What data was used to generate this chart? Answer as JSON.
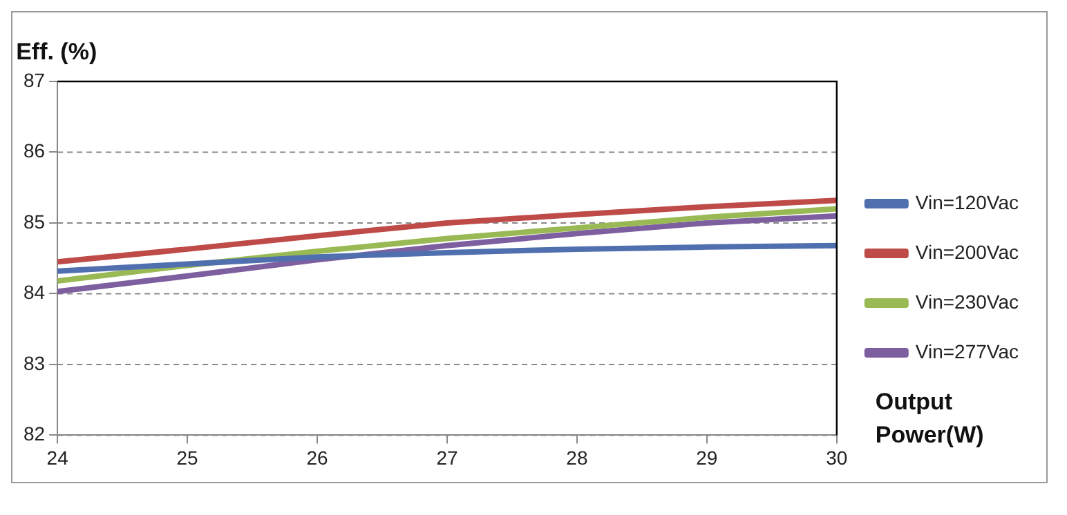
{
  "chart_data": {
    "type": "line",
    "ylabel": "Eff. (%)",
    "xlabel": "Output Power(W)",
    "x": [
      24,
      25,
      26,
      27,
      28,
      29,
      30
    ],
    "series": [
      {
        "name": "Vin=120Vac",
        "color": "#4f6faf",
        "values": [
          84.32,
          84.42,
          84.52,
          84.58,
          84.63,
          84.66,
          84.68
        ]
      },
      {
        "name": "Vin=200Vac",
        "color": "#be4b48",
        "values": [
          84.45,
          84.63,
          84.82,
          85.0,
          85.12,
          85.23,
          85.32
        ]
      },
      {
        "name": "Vin=230Vac",
        "color": "#98b954",
        "values": [
          84.18,
          84.4,
          84.6,
          84.78,
          84.93,
          85.08,
          85.2
        ]
      },
      {
        "name": "Vin=277Vac",
        "color": "#7d5fa0",
        "values": [
          84.03,
          84.25,
          84.48,
          84.68,
          84.85,
          85.0,
          85.1
        ]
      }
    ],
    "xlim": [
      24,
      30
    ],
    "xticks": [
      24,
      25,
      26,
      27,
      28,
      29,
      30
    ],
    "ylim": [
      82,
      87
    ],
    "yticks": [
      82,
      83,
      84,
      85,
      86,
      87
    ],
    "grid": "y",
    "legend": "right",
    "marker": "none",
    "line_style": "solid"
  }
}
